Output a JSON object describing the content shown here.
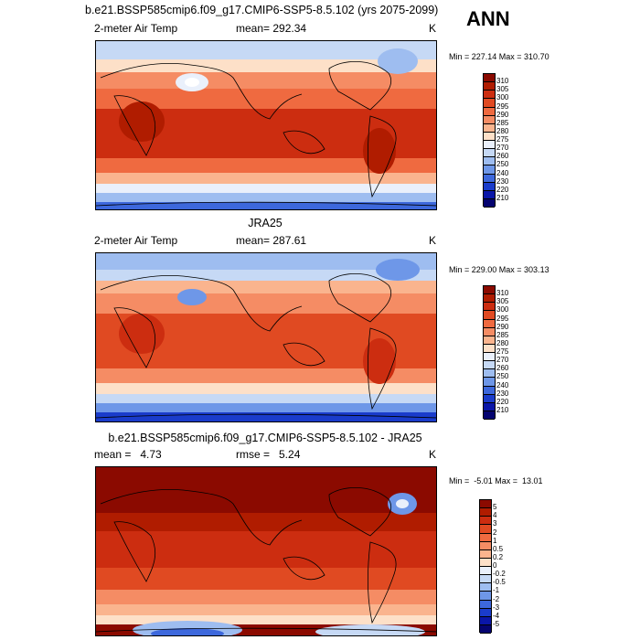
{
  "header": {
    "case_title": "b.e21.BSSP585cmip6.f09_g17.CMIP6-SSP5-8.5.102 (yrs 2075-2099)",
    "season": "ANN"
  },
  "panels": [
    {
      "id": "model",
      "title": "",
      "variable": "2-meter Air Temp",
      "stat_label": "mean= 292.34",
      "units": "K",
      "minmax": "Min = 227.14 Max = 310.70",
      "colors": [
        "#c0c000"
      ]
    },
    {
      "id": "obs",
      "title": "JRA25",
      "variable": "2-meter Air Temp",
      "stat_label": "mean= 287.61",
      "units": "K",
      "minmax": "Min = 229.00 Max = 303.13"
    },
    {
      "id": "diff",
      "title": "b.e21.BSSP585cmip6.f09_g17.CMIP6-SSP5-8.5.102 - JRA25",
      "stat_left": "mean =   4.73",
      "stat_mid": "rmse =   5.24",
      "units": "K",
      "minmax": "Min =  -5.01 Max =  13.01"
    }
  ],
  "colorbars": {
    "temp": {
      "labels": [
        "310",
        "305",
        "300",
        "295",
        "290",
        "285",
        "280",
        "275",
        "270",
        "260",
        "250",
        "240",
        "230",
        "220",
        "210"
      ],
      "colors": [
        "#8b0a00",
        "#b01c00",
        "#cc2d10",
        "#e04a22",
        "#ef6a40",
        "#f58c64",
        "#fab48e",
        "#fde0c8",
        "#eaf0fb",
        "#c6d9f5",
        "#9ebdf0",
        "#6e97e8",
        "#3d68dc",
        "#1a3ccb",
        "#0a16a8",
        "#050470"
      ]
    },
    "diff": {
      "labels": [
        "5",
        "4",
        "3",
        "2",
        "1",
        "0.5",
        "0.2",
        "0",
        "-0.2",
        "-0.5",
        "-1",
        "-2",
        "-3",
        "-4",
        "-5"
      ],
      "colors": [
        "#8b0a00",
        "#b01c00",
        "#cc2d10",
        "#e04a22",
        "#ef6a40",
        "#f58c64",
        "#fab48e",
        "#fde0c8",
        "#eaf0fb",
        "#c6d9f5",
        "#9ebdf0",
        "#6e97e8",
        "#3d68dc",
        "#1a3ccb",
        "#0a16a8",
        "#050470"
      ]
    }
  }
}
